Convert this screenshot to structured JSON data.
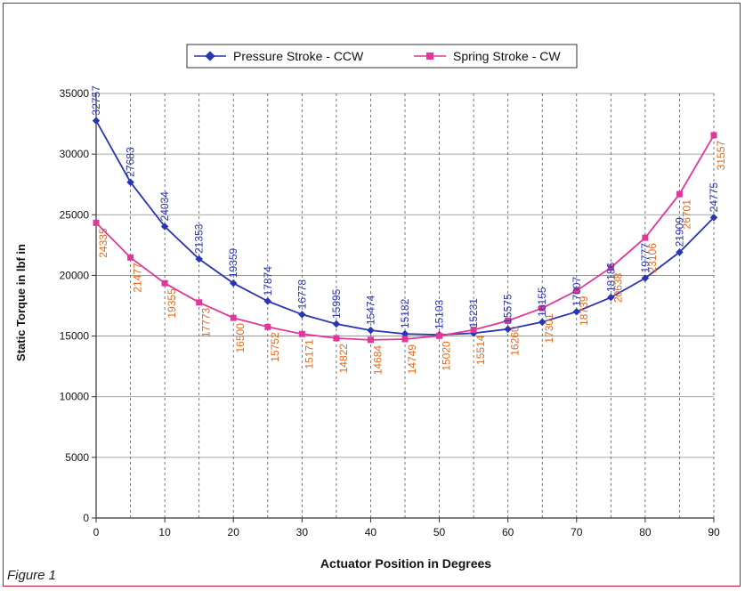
{
  "figure": {
    "caption": "Figure 1"
  },
  "chart_data": {
    "type": "line",
    "title": "",
    "xlabel": "Actuator Position in Degrees",
    "ylabel": "Static Torque in lbf in",
    "x": [
      0,
      5,
      10,
      15,
      20,
      25,
      30,
      35,
      40,
      45,
      50,
      55,
      60,
      65,
      70,
      75,
      80,
      85,
      90
    ],
    "xticks": [
      0,
      10,
      20,
      30,
      40,
      50,
      60,
      70,
      80,
      90
    ],
    "xlim": [
      0,
      90
    ],
    "ylim": [
      0,
      35000
    ],
    "yticks": [
      0,
      5000,
      10000,
      15000,
      20000,
      25000,
      30000,
      35000
    ],
    "grid": {
      "horizontal": "solid",
      "vertical": "dashed"
    },
    "legend_position": "top-center",
    "series": [
      {
        "name": "Pressure Stroke - CCW",
        "color": "#2a35b0",
        "marker": "diamond",
        "values": [
          32757,
          27683,
          24034,
          21353,
          19359,
          17874,
          16778,
          15995,
          15474,
          15182,
          15103,
          15231,
          15575,
          16155,
          17007,
          18186,
          19777,
          21909,
          24775
        ]
      },
      {
        "name": "Spring Stroke - CW",
        "color": "#e0389a",
        "label_color": "#e46a1c",
        "marker": "square",
        "values": [
          24335,
          21477,
          19355,
          17773,
          16500,
          15752,
          15171,
          14822,
          14684,
          14749,
          15020,
          15514,
          16260,
          17301,
          18739,
          20638,
          23106,
          26701,
          31557
        ]
      }
    ]
  }
}
